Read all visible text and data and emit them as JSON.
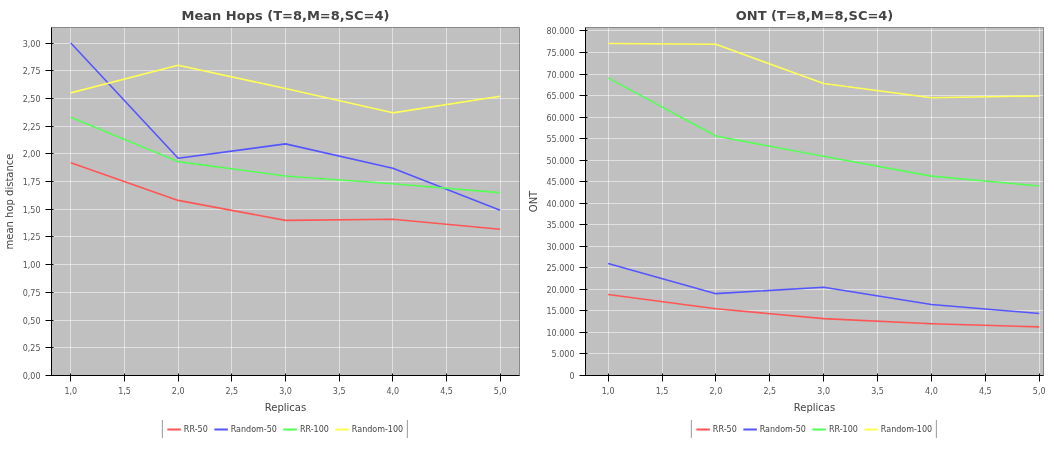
{
  "chart_data": [
    {
      "type": "line",
      "title": "Mean Hops (T=8,M=8,SC=4)",
      "xlabel": "Replicas",
      "ylabel": "mean hop distance",
      "x": [
        1,
        2,
        3,
        4,
        5
      ],
      "series": [
        {
          "name": "RR-50",
          "color": "#ff5555",
          "values": [
            1.92,
            1.58,
            1.4,
            1.41,
            1.32
          ]
        },
        {
          "name": "Random-50",
          "color": "#5555ff",
          "values": [
            3.0,
            1.96,
            2.09,
            1.87,
            1.49
          ]
        },
        {
          "name": "RR-100",
          "color": "#55ff55",
          "values": [
            2.33,
            1.93,
            1.8,
            1.73,
            1.65
          ]
        },
        {
          "name": "Random-100",
          "color": "#ffff55",
          "values": [
            2.55,
            2.8,
            2.59,
            2.37,
            2.52
          ]
        }
      ],
      "xlim": [
        0.82,
        5.18
      ],
      "ylim": [
        0,
        3.14
      ],
      "xticks": [
        {
          "value": 1,
          "label": "1,0"
        },
        {
          "value": 1.5,
          "label": "1,5"
        },
        {
          "value": 2,
          "label": "2,0"
        },
        {
          "value": 2.5,
          "label": "2,5"
        },
        {
          "value": 3,
          "label": "3,0"
        },
        {
          "value": 3.5,
          "label": "3,5"
        },
        {
          "value": 4,
          "label": "4,0"
        },
        {
          "value": 4.5,
          "label": "4,5"
        },
        {
          "value": 5,
          "label": "5,0"
        }
      ],
      "yticks": [
        {
          "value": 0,
          "label": "0,00"
        },
        {
          "value": 0.25,
          "label": "0,25"
        },
        {
          "value": 0.5,
          "label": "0,50"
        },
        {
          "value": 0.75,
          "label": "0,75"
        },
        {
          "value": 1,
          "label": "1,00"
        },
        {
          "value": 1.25,
          "label": "1,25"
        },
        {
          "value": 1.5,
          "label": "1,50"
        },
        {
          "value": 1.75,
          "label": "1,75"
        },
        {
          "value": 2,
          "label": "2,00"
        },
        {
          "value": 2.25,
          "label": "2,25"
        },
        {
          "value": 2.5,
          "label": "2,50"
        },
        {
          "value": 2.75,
          "label": "2,75"
        },
        {
          "value": 3,
          "label": "3,00"
        }
      ],
      "grid": true,
      "legend": "bottom",
      "marker": "none",
      "line_style": "solid"
    },
    {
      "type": "line",
      "title": "ONT (T=8,M=8,SC=4)",
      "xlabel": "Replicas",
      "ylabel": "ONT",
      "x": [
        1,
        2,
        3,
        4,
        5
      ],
      "series": [
        {
          "name": "RR-50",
          "color": "#ff5555",
          "values": [
            18800,
            15500,
            13200,
            12000,
            11300
          ]
        },
        {
          "name": "Random-50",
          "color": "#5555ff",
          "values": [
            26000,
            19000,
            20500,
            16500,
            14400
          ]
        },
        {
          "name": "RR-100",
          "color": "#55ff55",
          "values": [
            69100,
            55600,
            50900,
            46300,
            44000
          ]
        },
        {
          "name": "Random-100",
          "color": "#ffff55",
          "values": [
            77100,
            76900,
            67800,
            64500,
            64900
          ]
        }
      ],
      "xlim": [
        0.79,
        5.04
      ],
      "ylim": [
        0,
        80800
      ],
      "xticks": [
        {
          "value": 1,
          "label": "1,0"
        },
        {
          "value": 1.5,
          "label": "1,5"
        },
        {
          "value": 2,
          "label": "2,0"
        },
        {
          "value": 2.5,
          "label": "2,5"
        },
        {
          "value": 3,
          "label": "3,0"
        },
        {
          "value": 3.5,
          "label": "3,5"
        },
        {
          "value": 4,
          "label": "4,0"
        },
        {
          "value": 4.5,
          "label": "4,5"
        },
        {
          "value": 5,
          "label": "5,0"
        }
      ],
      "yticks": [
        0,
        {
          "value": 5000,
          "label": "5.000"
        },
        {
          "value": 10000,
          "label": "10.000"
        },
        {
          "value": 15000,
          "label": "15.000"
        },
        {
          "value": 20000,
          "label": "20.000"
        },
        {
          "value": 25000,
          "label": "25.000"
        },
        {
          "value": 30000,
          "label": "30.000"
        },
        {
          "value": 35000,
          "label": "35.000"
        },
        {
          "value": 40000,
          "label": "40.000"
        },
        {
          "value": 45000,
          "label": "45.000"
        },
        {
          "value": 50000,
          "label": "50.000"
        },
        {
          "value": 55000,
          "label": "55.000"
        },
        {
          "value": 60000,
          "label": "60.000"
        },
        {
          "value": 65000,
          "label": "65.000"
        },
        {
          "value": 70000,
          "label": "70.000"
        },
        {
          "value": 75000,
          "label": "75.000"
        },
        {
          "value": 80000,
          "label": "80.000"
        }
      ],
      "grid": true,
      "legend": "bottom",
      "marker": "none",
      "line_style": "solid"
    }
  ]
}
